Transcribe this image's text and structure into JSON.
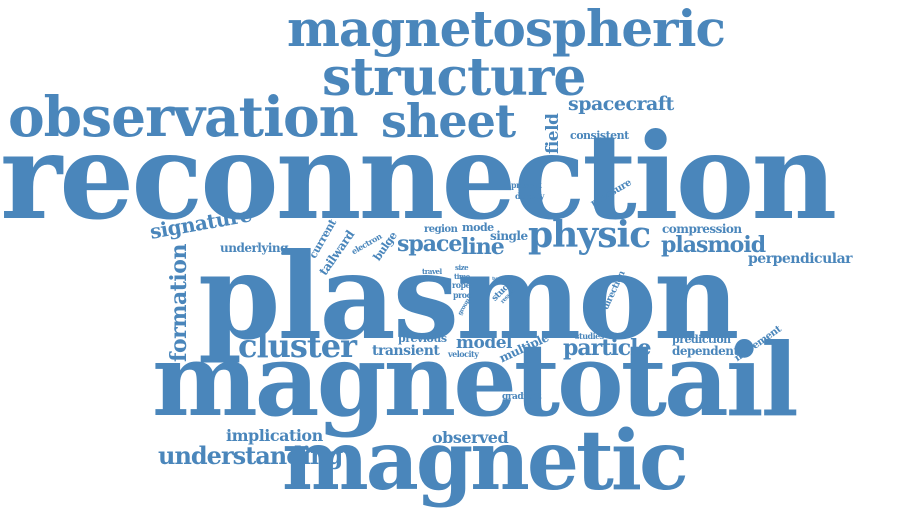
{
  "color": "#4a86bb",
  "words": {
    "magnetospheric": "magnetospheric",
    "structure": "structure",
    "observation": "observation",
    "sheet": "sheet",
    "spacecraft": "spacecraft",
    "field": "field",
    "consistent": "consistent",
    "reconnection": "reconnection",
    "present": "present",
    "density": "density",
    "pressure": "pressure",
    "signature": "signature",
    "underlying": "underlying",
    "current": "current",
    "tailward": "tailward",
    "electron": "electron",
    "bulge": "bulge",
    "region": "region",
    "mode": "mode",
    "space": "space",
    "line": "line",
    "single": "single",
    "physic": "physic",
    "compression": "compression",
    "plasmoid": "plasmoid",
    "perpendicular": "perpendicular",
    "formation": "formation",
    "plasmon": "plasmon",
    "travel": "travel",
    "size": "size",
    "time": "time",
    "rope": "rope",
    "proc": "proc",
    "type": "type",
    "study": "study",
    "result": "result",
    "group": "group",
    "direction": "direction",
    "studies": "studies",
    "prediction": "prediction",
    "movement": "movement",
    "cluster": "cluster",
    "previous": "previous",
    "model": "model",
    "transient": "transient",
    "velocity": "velocity",
    "multiple": "multiple",
    "particle": "particle",
    "dependent": "dependent",
    "magnetotail": "magnetotail",
    "gradient": "gradient",
    "implication": "implication",
    "observed": "observed",
    "understanding": "understanding",
    "magnetic": "magnetic"
  }
}
